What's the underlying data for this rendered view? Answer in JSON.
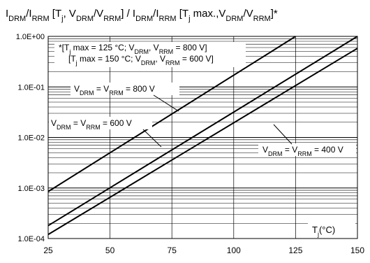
{
  "chart_data": {
    "type": "line",
    "title_segments": [
      {
        "t": "I",
        "s": "n"
      },
      {
        "t": "DRM",
        "s": "sub"
      },
      {
        "t": "/I",
        "s": "n"
      },
      {
        "t": "RRM",
        "s": "sub"
      },
      {
        "t": " [T",
        "s": "n"
      },
      {
        "t": "j",
        "s": "sub"
      },
      {
        "t": ", V",
        "s": "n"
      },
      {
        "t": "DRM",
        "s": "sub"
      },
      {
        "t": "/V",
        "s": "n"
      },
      {
        "t": "RRM",
        "s": "sub"
      },
      {
        "t": "] / I",
        "s": "n"
      },
      {
        "t": "DRM",
        "s": "sub"
      },
      {
        "t": "/I",
        "s": "n"
      },
      {
        "t": "RRM",
        "s": "sub"
      },
      {
        "t": " [T",
        "s": "n"
      },
      {
        "t": "j",
        "s": "sub"
      },
      {
        "t": " max.,V",
        "s": "n"
      },
      {
        "t": "DRM",
        "s": "sub"
      },
      {
        "t": "/V",
        "s": "n"
      },
      {
        "t": "RRM",
        "s": "sub"
      },
      {
        "t": "]*",
        "s": "n"
      }
    ],
    "x_unit_segments": [
      {
        "t": "T",
        "s": "n"
      },
      {
        "t": "j",
        "s": "sub"
      },
      {
        "t": "(°C)",
        "s": "n"
      }
    ],
    "x_range": [
      25,
      150
    ],
    "x_ticks": [
      25,
      50,
      75,
      100,
      125,
      150
    ],
    "y_scale": "log",
    "y_range": [
      0.0001,
      1.0
    ],
    "y_ticks": [
      "1.0E-04",
      "1.0E-03",
      "1.0E-02",
      "1.0E-01",
      "1.0E+00"
    ],
    "grid": true,
    "series": [
      {
        "x": [
          25,
          125
        ],
        "y": [
          0.00085,
          1.0
        ]
      },
      {
        "x": [
          25,
          150
        ],
        "y": [
          0.00018,
          1.0
        ]
      },
      {
        "x": [
          25,
          150
        ],
        "y": [
          0.00012,
          0.58
        ]
      }
    ],
    "annotations": [
      {
        "id": "note-line1",
        "segments": [
          {
            "t": "*[T",
            "s": "n"
          },
          {
            "t": "j",
            "s": "sub"
          },
          {
            "t": " max = 125 °C; V",
            "s": "n"
          },
          {
            "t": "DRM",
            "s": "sub"
          },
          {
            "t": ", V",
            "s": "n"
          },
          {
            "t": "RRM",
            "s": "sub"
          },
          {
            "t": " = 800 V]",
            "s": "n"
          }
        ]
      },
      {
        "id": "note-line2",
        "segments": [
          {
            "t": "[T",
            "s": "n"
          },
          {
            "t": "j",
            "s": "sub"
          },
          {
            "t": " max = 150 °C; V",
            "s": "n"
          },
          {
            "t": "DRM",
            "s": "sub"
          },
          {
            "t": ", V",
            "s": "n"
          },
          {
            "t": "RRM",
            "s": "sub"
          },
          {
            "t": " = 600 V]",
            "s": "n"
          }
        ]
      },
      {
        "id": "label-800v",
        "segments": [
          {
            "t": "V",
            "s": "n"
          },
          {
            "t": "DRM",
            "s": "sub"
          },
          {
            "t": " = V",
            "s": "n"
          },
          {
            "t": "RRM",
            "s": "sub"
          },
          {
            "t": " = 800 V",
            "s": "n"
          }
        ]
      },
      {
        "id": "label-600v",
        "segments": [
          {
            "t": "V",
            "s": "n"
          },
          {
            "t": "DRM",
            "s": "sub"
          },
          {
            "t": " = V",
            "s": "n"
          },
          {
            "t": "RRM",
            "s": "sub"
          },
          {
            "t": " = 600 V",
            "s": "n"
          }
        ]
      },
      {
        "id": "label-400v",
        "segments": [
          {
            "t": "V",
            "s": "n"
          },
          {
            "t": "DRM",
            "s": "sub"
          },
          {
            "t": " = V",
            "s": "n"
          },
          {
            "t": "RRM",
            "s": "sub"
          },
          {
            "t": " = 400 V",
            "s": "n"
          }
        ]
      }
    ]
  }
}
